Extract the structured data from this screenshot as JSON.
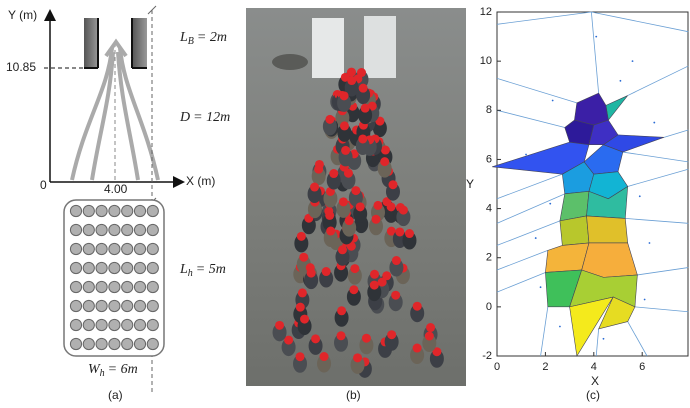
{
  "panel_a": {
    "y_axis_label": "Y (m)",
    "x_axis_label": "X (m)",
    "origin": "0",
    "exit_y": "10.85",
    "center_x": "4.00",
    "exit_width": {
      "symbol": "L",
      "subscript": "B",
      "text": "= 2m"
    },
    "corridor_length": {
      "symbol": "D",
      "text": "= 12m"
    },
    "holding_length": {
      "symbol": "L",
      "subscript": "h",
      "text": "= 5m"
    },
    "holding_width": {
      "symbol": "W",
      "subscript": "h",
      "text": "= 6m"
    },
    "caption": "(a)"
  },
  "panel_b": {
    "caption": "(b)"
  },
  "panel_c": {
    "x_axis_label": "X",
    "y_axis_label": "Y",
    "yticks": [
      "12",
      "10",
      "8",
      "6",
      "4",
      "2",
      "0",
      "-2"
    ],
    "xticks": [
      "0",
      "2",
      "4",
      "6"
    ],
    "caption": "(c)"
  }
}
